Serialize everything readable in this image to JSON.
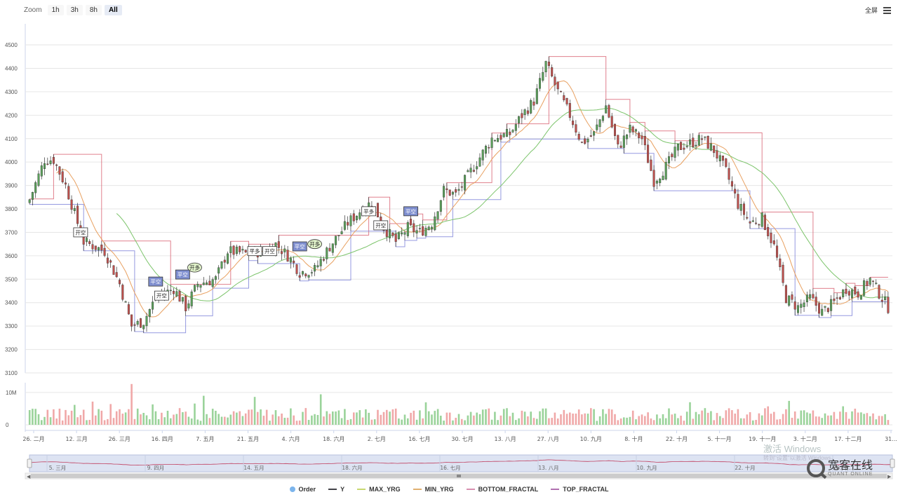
{
  "zoom": {
    "label": "Zoom",
    "buttons": [
      "1h",
      "3h",
      "8h",
      "All"
    ],
    "active": "All"
  },
  "fullscreen_label": "全屏",
  "colors": {
    "up": "#5aa05a",
    "down": "#c0504d",
    "max_yrg": "#7cc46b",
    "min_yrg": "#e8a060",
    "bottom": "#7a7fd8",
    "top": "#d86070",
    "vol_up": "#9ad39a",
    "vol_down": "#f0a8a8"
  },
  "chart_data": {
    "type": "candlestick",
    "y_ticks": [
      "4500",
      "4400",
      "4300",
      "4200",
      "4100",
      "4000",
      "3900",
      "3800",
      "3700",
      "3600",
      "3500",
      "3400",
      "3300",
      "3200",
      "3100"
    ],
    "ylim": [
      3100,
      4560
    ],
    "volume_ticks": [
      "10M",
      "0"
    ],
    "volume_ylim": [
      0,
      13
    ],
    "x_ticks": [
      "26. 二月",
      "12. 三月",
      "26. 三月",
      "16. 四月",
      "7. 五月",
      "21. 五月",
      "4. 六月",
      "18. 六月",
      "2. 七月",
      "16. 七月",
      "30. 七月",
      "13. 八月",
      "27. 八月",
      "10. 九月",
      "8. 十月",
      "22. 十月",
      "5. 十一月",
      "19. 十一月",
      "3. 十二月",
      "17. 十二月",
      "31..."
    ],
    "navigator_ticks": [
      "5. 三月",
      "9. 四月",
      "14. 五月",
      "18. 六月",
      "16. 七月",
      "13. 八月",
      "10. 九月",
      "22. 十月",
      "26. 十..."
    ],
    "close_anchors": [
      [
        0,
        3840
      ],
      [
        5,
        4010
      ],
      [
        8,
        4010
      ],
      [
        12,
        3900
      ],
      [
        18,
        3660
      ],
      [
        25,
        3620
      ],
      [
        30,
        3480
      ],
      [
        34,
        3300
      ],
      [
        38,
        3320
      ],
      [
        42,
        3420
      ],
      [
        48,
        3460
      ],
      [
        52,
        3380
      ],
      [
        56,
        3480
      ],
      [
        62,
        3500
      ],
      [
        66,
        3620
      ],
      [
        72,
        3610
      ],
      [
        78,
        3620
      ],
      [
        82,
        3650
      ],
      [
        86,
        3600
      ],
      [
        90,
        3530
      ],
      [
        95,
        3540
      ],
      [
        100,
        3640
      ],
      [
        106,
        3740
      ],
      [
        110,
        3790
      ],
      [
        114,
        3830
      ],
      [
        118,
        3720
      ],
      [
        122,
        3660
      ],
      [
        126,
        3720
      ],
      [
        130,
        3700
      ],
      [
        134,
        3740
      ],
      [
        138,
        3880
      ],
      [
        142,
        3860
      ],
      [
        148,
        3980
      ],
      [
        154,
        4100
      ],
      [
        160,
        4120
      ],
      [
        164,
        4200
      ],
      [
        168,
        4260
      ],
      [
        172,
        4420
      ],
      [
        176,
        4300
      ],
      [
        180,
        4200
      ],
      [
        184,
        4080
      ],
      [
        188,
        4120
      ],
      [
        192,
        4240
      ],
      [
        196,
        4060
      ],
      [
        200,
        4140
      ],
      [
        204,
        4100
      ],
      [
        208,
        3920
      ],
      [
        212,
        3980
      ],
      [
        216,
        4060
      ],
      [
        220,
        4080
      ],
      [
        224,
        4100
      ],
      [
        228,
        4050
      ],
      [
        232,
        3960
      ],
      [
        236,
        3820
      ],
      [
        240,
        3740
      ],
      [
        244,
        3760
      ],
      [
        248,
        3640
      ],
      [
        252,
        3420
      ],
      [
        256,
        3380
      ],
      [
        260,
        3420
      ],
      [
        264,
        3360
      ],
      [
        268,
        3400
      ],
      [
        272,
        3460
      ],
      [
        276,
        3440
      ],
      [
        280,
        3500
      ],
      [
        284,
        3420
      ],
      [
        286,
        3380
      ]
    ],
    "count": 287,
    "series": [
      {
        "name": "Order"
      },
      {
        "name": "Y"
      },
      {
        "name": "MAX_YRG"
      },
      {
        "name": "MIN_YRG"
      },
      {
        "name": "BOTTOM_FRACTAL"
      },
      {
        "name": "TOP_FRACTAL"
      }
    ],
    "annotations": [
      {
        "text": "开空",
        "i": 17,
        "price": 3700,
        "style": "open"
      },
      {
        "text": "平空",
        "i": 42,
        "price": 3490,
        "style": "close"
      },
      {
        "text": "开空",
        "i": 44,
        "price": 3430,
        "style": "open"
      },
      {
        "text": "平空",
        "i": 51,
        "price": 3520,
        "style": "close"
      },
      {
        "text": "开多",
        "i": 55,
        "price": 3550,
        "style": "open-long"
      },
      {
        "text": "平多",
        "i": 75,
        "price": 3620,
        "style": "open"
      },
      {
        "text": "开空",
        "i": 80,
        "price": 3620,
        "style": "open"
      },
      {
        "text": "平空",
        "i": 90,
        "price": 3640,
        "style": "close"
      },
      {
        "text": "开多",
        "i": 95,
        "price": 3650,
        "style": "open-long"
      },
      {
        "text": "平多",
        "i": 113,
        "price": 3790,
        "style": "open"
      },
      {
        "text": "开空",
        "i": 117,
        "price": 3730,
        "style": "open"
      },
      {
        "text": "平空",
        "i": 127,
        "price": 3790,
        "style": "close"
      }
    ]
  },
  "watermark": {
    "line1": "激活 Windows",
    "line2": "转到\"设置\"以激活 Windows。"
  },
  "brand": {
    "name": "宽客在线",
    "sub": "QUANT ONLINE"
  }
}
